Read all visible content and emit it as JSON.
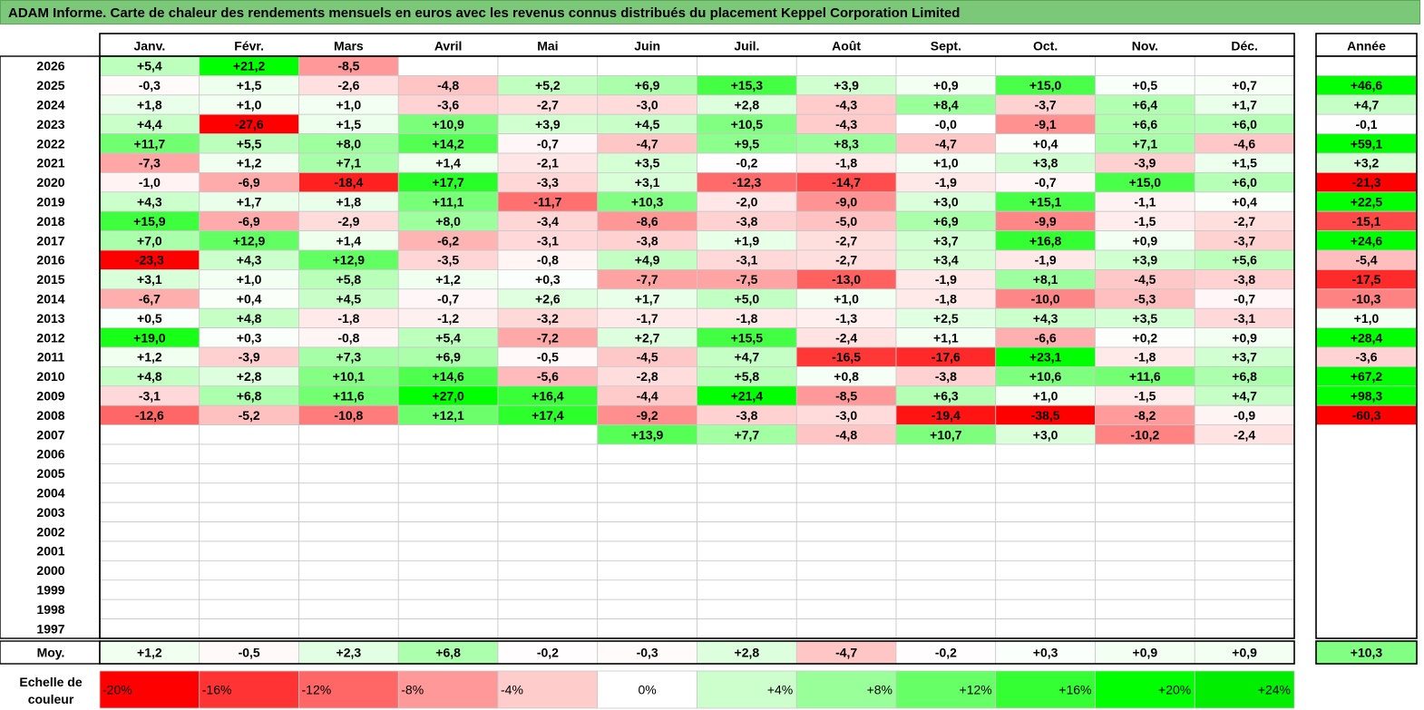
{
  "title": "ADAM Informe. Carte de chaleur des rendements mensuels en euros avec les revenus connus distribués du placement Keppel Corporation Limited",
  "chart_data": {
    "type": "heatmap",
    "months": [
      "Janv.",
      "Févr.",
      "Mars",
      "Avril",
      "Mai",
      "Juin",
      "Juil.",
      "Août",
      "Sept.",
      "Oct.",
      "Nov.",
      "Déc."
    ],
    "year_header": "Année",
    "years": [
      "2026",
      "2025",
      "2024",
      "2023",
      "2022",
      "2021",
      "2020",
      "2019",
      "2018",
      "2017",
      "2016",
      "2015",
      "2014",
      "2013",
      "2012",
      "2011",
      "2010",
      "2009",
      "2008",
      "2007",
      "2006",
      "2005",
      "2004",
      "2003",
      "2002",
      "2001",
      "2000",
      "1999",
      "1998",
      "1997"
    ],
    "values": [
      [
        "+5,4",
        "+21,2",
        "-8,5",
        "",
        "",
        "",
        "",
        "",
        "",
        "",
        "",
        ""
      ],
      [
        "-0,3",
        "+1,5",
        "-2,6",
        "-4,8",
        "+5,2",
        "+6,9",
        "+15,3",
        "+3,9",
        "+0,9",
        "+15,0",
        "+0,5",
        "+0,7"
      ],
      [
        "+1,8",
        "+1,0",
        "+1,0",
        "-3,6",
        "-2,7",
        "-3,0",
        "+2,8",
        "-4,3",
        "+8,4",
        "-3,7",
        "+6,4",
        "+1,7"
      ],
      [
        "+4,4",
        "-27,6",
        "+1,5",
        "+10,9",
        "+3,9",
        "+4,5",
        "+10,5",
        "-4,3",
        "-0,0",
        "-9,1",
        "+6,6",
        "+6,0"
      ],
      [
        "+11,7",
        "+5,5",
        "+8,0",
        "+14,2",
        "-0,7",
        "-4,7",
        "+9,5",
        "+8,3",
        "-4,7",
        "+0,4",
        "+7,1",
        "-4,6"
      ],
      [
        "-7,3",
        "+1,2",
        "+7,1",
        "+1,4",
        "-2,1",
        "+3,5",
        "-0,2",
        "-1,8",
        "+1,0",
        "+3,8",
        "-3,9",
        "+1,5"
      ],
      [
        "-1,0",
        "-6,9",
        "-18,4",
        "+17,7",
        "-3,3",
        "+3,1",
        "-12,3",
        "-14,7",
        "-1,9",
        "-0,7",
        "+15,0",
        "+6,0"
      ],
      [
        "+4,3",
        "+1,7",
        "+1,8",
        "+11,1",
        "-11,7",
        "+10,3",
        "-2,0",
        "-9,0",
        "+3,0",
        "+15,1",
        "-1,1",
        "+0,4"
      ],
      [
        "+15,9",
        "-6,9",
        "-2,9",
        "+8,0",
        "-3,4",
        "-8,6",
        "-3,8",
        "-5,0",
        "+6,9",
        "-9,9",
        "-1,5",
        "-2,7"
      ],
      [
        "+7,0",
        "+12,9",
        "+1,4",
        "-6,2",
        "-3,1",
        "-3,8",
        "+1,9",
        "-2,7",
        "+3,7",
        "+16,8",
        "+0,9",
        "-3,7"
      ],
      [
        "-23,3",
        "+4,3",
        "+12,9",
        "-3,5",
        "-0,8",
        "+4,9",
        "-3,1",
        "-2,7",
        "+3,4",
        "-1,9",
        "+3,9",
        "+5,6"
      ],
      [
        "+3,1",
        "+1,0",
        "+5,8",
        "+1,2",
        "+0,3",
        "-7,7",
        "-7,5",
        "-13,0",
        "-1,9",
        "+8,1",
        "-4,5",
        "-3,8"
      ],
      [
        "-6,7",
        "+0,4",
        "+4,5",
        "-0,7",
        "+2,6",
        "+1,7",
        "+5,0",
        "+1,0",
        "-1,8",
        "-10,0",
        "-5,3",
        "-0,7"
      ],
      [
        "+0,5",
        "+4,8",
        "-1,8",
        "-1,2",
        "-3,2",
        "-1,7",
        "-1,8",
        "-1,3",
        "+2,5",
        "+4,3",
        "+3,5",
        "-3,1"
      ],
      [
        "+19,0",
        "+0,3",
        "-0,8",
        "+5,4",
        "-7,2",
        "+2,7",
        "+15,5",
        "-2,4",
        "+1,1",
        "-6,6",
        "+0,2",
        "+0,9"
      ],
      [
        "+1,2",
        "-3,9",
        "+7,3",
        "+6,9",
        "-0,5",
        "-4,5",
        "+4,7",
        "-16,5",
        "-17,6",
        "+23,1",
        "-1,8",
        "+3,7"
      ],
      [
        "+4,8",
        "+2,8",
        "+10,1",
        "+14,6",
        "-5,6",
        "-2,8",
        "+5,8",
        "+0,8",
        "-3,8",
        "+10,6",
        "+11,6",
        "+6,8"
      ],
      [
        "-3,1",
        "+6,8",
        "+11,6",
        "+27,0",
        "+16,4",
        "-4,4",
        "+21,4",
        "-8,5",
        "+6,3",
        "+1,0",
        "-1,5",
        "+4,7"
      ],
      [
        "-12,6",
        "-5,2",
        "-10,8",
        "+12,1",
        "+17,4",
        "-9,2",
        "-3,8",
        "-3,0",
        "-19,4",
        "-38,5",
        "-8,2",
        "-0,9"
      ],
      [
        "",
        "",
        "",
        "",
        "",
        "+13,9",
        "+7,7",
        "-4,8",
        "+10,7",
        "+3,0",
        "-10,2",
        "-2,4"
      ],
      [
        "",
        "",
        "",
        "",
        "",
        "",
        "",
        "",
        "",
        "",
        "",
        ""
      ],
      [
        "",
        "",
        "",
        "",
        "",
        "",
        "",
        "",
        "",
        "",
        "",
        ""
      ],
      [
        "",
        "",
        "",
        "",
        "",
        "",
        "",
        "",
        "",
        "",
        "",
        ""
      ],
      [
        "",
        "",
        "",
        "",
        "",
        "",
        "",
        "",
        "",
        "",
        "",
        ""
      ],
      [
        "",
        "",
        "",
        "",
        "",
        "",
        "",
        "",
        "",
        "",
        "",
        ""
      ],
      [
        "",
        "",
        "",
        "",
        "",
        "",
        "",
        "",
        "",
        "",
        "",
        ""
      ],
      [
        "",
        "",
        "",
        "",
        "",
        "",
        "",
        "",
        "",
        "",
        "",
        ""
      ],
      [
        "",
        "",
        "",
        "",
        "",
        "",
        "",
        "",
        "",
        "",
        "",
        ""
      ],
      [
        "",
        "",
        "",
        "",
        "",
        "",
        "",
        "",
        "",
        "",
        "",
        ""
      ],
      [
        "",
        "",
        "",
        "",
        "",
        "",
        "",
        "",
        "",
        "",
        "",
        ""
      ]
    ],
    "annual": [
      "",
      "+46,6",
      "+4,7",
      "-0,1",
      "+59,1",
      "+3,2",
      "-21,3",
      "+22,5",
      "-15,1",
      "+24,6",
      "-5,4",
      "-17,5",
      "-10,3",
      "+1,0",
      "+28,4",
      "-3,6",
      "+67,2",
      "+98,3",
      "-60,3",
      "",
      "",
      "",
      "",
      "",
      "",
      "",
      "",
      "",
      "",
      ""
    ],
    "average_label": "Moy.",
    "averages": [
      "+1,2",
      "-0,5",
      "+2,3",
      "+6,8",
      "-0,2",
      "-0,3",
      "+2,8",
      "-4,7",
      "-0,2",
      "+0,3",
      "+0,9",
      "+0,9"
    ],
    "average_annual": "+10,3",
    "scale_label_line1": "Echelle de",
    "scale_label_line2": "couleur",
    "scale": [
      {
        "label": "-20%",
        "value": -20,
        "color": "#ff0000"
      },
      {
        "label": "-16%",
        "value": -16,
        "color": "#ff3333"
      },
      {
        "label": "-12%",
        "value": -12,
        "color": "#ff6666"
      },
      {
        "label": "-8%",
        "value": -8,
        "color": "#ff9999"
      },
      {
        "label": "-4%",
        "value": -4,
        "color": "#ffcccc"
      },
      {
        "label": "0%",
        "value": 0,
        "color": "#ffffff"
      },
      {
        "label": "+4%",
        "value": 4,
        "color": "#ccffcc"
      },
      {
        "label": "+8%",
        "value": 8,
        "color": "#99ff99"
      },
      {
        "label": "+12%",
        "value": 12,
        "color": "#66ff66"
      },
      {
        "label": "+16%",
        "value": 16,
        "color": "#33ff33"
      },
      {
        "label": "+20%",
        "value": 20,
        "color": "#00ff00"
      },
      {
        "label": "+24%",
        "value": 24,
        "color": "#00ee00"
      }
    ]
  }
}
